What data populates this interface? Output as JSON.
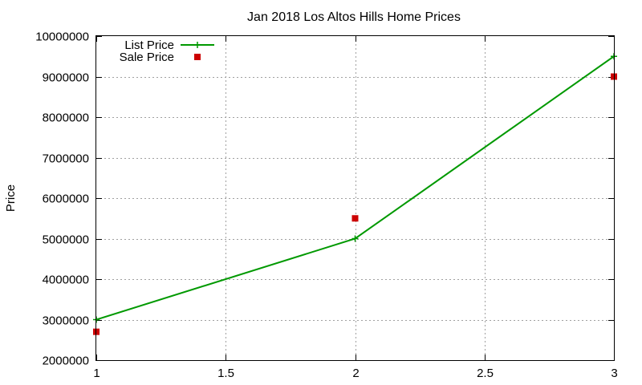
{
  "chart_data": {
    "type": "line",
    "title": "Jan 2018 Los Altos Hills Home Prices",
    "xlabel": "",
    "ylabel": "Price",
    "xlim": [
      1,
      3
    ],
    "ylim": [
      2000000,
      10000000
    ],
    "x_ticks": [
      1,
      1.5,
      2,
      2.5,
      3
    ],
    "x_tick_labels": [
      "1",
      "1.5",
      "2",
      "2.5",
      "3"
    ],
    "y_ticks": [
      2000000,
      3000000,
      4000000,
      5000000,
      6000000,
      7000000,
      8000000,
      9000000,
      10000000
    ],
    "y_tick_labels": [
      "2000000",
      "3000000",
      "4000000",
      "5000000",
      "6000000",
      "7000000",
      "8000000",
      "9000000",
      "10000000"
    ],
    "grid": true,
    "legend_position": "top-left",
    "series": [
      {
        "name": "List Price",
        "style": "linespoints",
        "marker": "plus",
        "color": "#009900",
        "points": [
          {
            "x": 1,
            "y": 3000000
          },
          {
            "x": 2,
            "y": 5000000
          },
          {
            "x": 3,
            "y": 9500000
          }
        ]
      },
      {
        "name": "Sale Price",
        "style": "points",
        "marker": "square",
        "color": "#cc0000",
        "points": [
          {
            "x": 1,
            "y": 2700000
          },
          {
            "x": 2,
            "y": 5500000
          },
          {
            "x": 3,
            "y": 9000000
          }
        ]
      }
    ]
  }
}
